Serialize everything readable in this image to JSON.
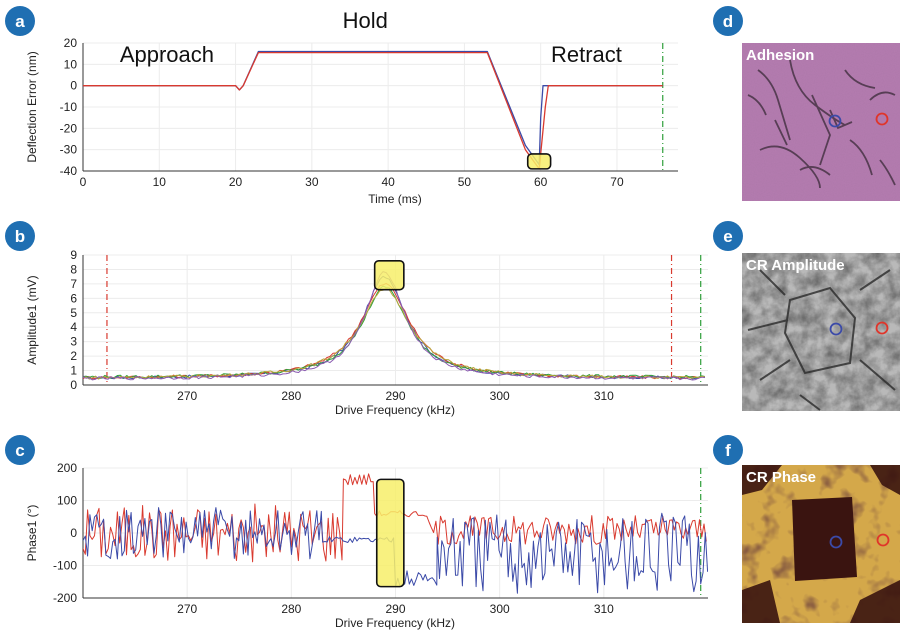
{
  "panel_labels": [
    "a",
    "b",
    "c",
    "d",
    "e",
    "f"
  ],
  "chart_data": [
    {
      "type": "line",
      "panel": "a",
      "xlabel": "Time (ms)",
      "ylabel": "Deflection Error (nm)",
      "xlim": [
        0,
        78
      ],
      "ylim": [
        -40,
        20
      ],
      "xticks": [
        0,
        10,
        20,
        30,
        40,
        50,
        60,
        70
      ],
      "yticks": [
        20,
        10,
        0,
        -10,
        -20,
        -30,
        -40
      ],
      "phase_labels": [
        {
          "text": "Approach",
          "x": 11,
          "y": 11
        },
        {
          "text": "Hold",
          "x": 37,
          "y": 27
        },
        {
          "text": "Retract",
          "x": 66,
          "y": 11
        }
      ],
      "series": [
        {
          "color": "#3b4aa8",
          "x": [
            0,
            20,
            20.5,
            21,
            23,
            53,
            58,
            59.8,
            60,
            60.3,
            62,
            76
          ],
          "y": [
            0,
            0,
            -2,
            0,
            16,
            16,
            -28,
            -37,
            -15,
            0,
            0,
            0
          ]
        },
        {
          "color": "#d93a2f",
          "x": [
            0,
            20,
            20.5,
            21,
            23,
            53,
            58,
            59.8,
            60.6,
            61,
            62,
            76
          ],
          "y": [
            0,
            0,
            -2,
            0,
            15.5,
            15.5,
            -30,
            -39,
            -10,
            0,
            0,
            0
          ]
        }
      ],
      "vlines": [
        {
          "x": 76,
          "color": "#2e9e3a"
        }
      ],
      "highlight": {
        "x": [
          58.3,
          61.3
        ],
        "y": [
          -39,
          -32
        ]
      }
    },
    {
      "type": "line",
      "panel": "b",
      "xlabel": "Drive Frequency (kHz)",
      "ylabel": "Amplitude1 (mV)",
      "xlim": [
        260,
        320
      ],
      "ylim": [
        0,
        9
      ],
      "xticks": [
        270,
        280,
        290,
        300,
        310
      ],
      "yticks": [
        9,
        8,
        7,
        6,
        5,
        4,
        3,
        2,
        1,
        0
      ],
      "peak_center": 289,
      "series": [
        {
          "color": "#3b4aa8",
          "peak": 7.5,
          "width": 2.6,
          "base": 0.45
        },
        {
          "color": "#d93a2f",
          "peak": 7.0,
          "width": 2.9,
          "base": 0.45
        },
        {
          "color": "#2e9e3a",
          "peak": 6.8,
          "width": 2.7,
          "base": 0.5
        },
        {
          "color": "#b8a53a",
          "peak": 6.6,
          "width": 3.0,
          "base": 0.45
        },
        {
          "color": "#8a5ab0",
          "peak": 7.8,
          "width": 2.4,
          "base": 0.4
        }
      ],
      "vlines": [
        {
          "x": 262.3,
          "color": "#d93a2f"
        },
        {
          "x": 316.5,
          "color": "#d93a2f"
        },
        {
          "x": 319.3,
          "color": "#2e9e3a"
        }
      ],
      "highlight": {
        "x": [
          288,
          290.8
        ],
        "y": [
          6.6,
          8.6
        ]
      }
    },
    {
      "type": "line",
      "panel": "c",
      "xlabel": "Drive Frequency (kHz)",
      "ylabel": "Phase1 (°)",
      "xlim": [
        260,
        320
      ],
      "ylim": [
        -200,
        200
      ],
      "xticks": [
        270,
        280,
        290,
        300,
        310
      ],
      "yticks": [
        200,
        100,
        0,
        -100,
        -200
      ],
      "series": [
        {
          "color": "#d93a2f",
          "segments": [
            [
              260,
              285,
              0,
              90
            ],
            [
              285,
              288,
              165,
              20
            ],
            [
              288,
              293,
              60,
              10
            ],
            [
              293,
              320,
              10,
              45
            ]
          ]
        },
        {
          "color": "#3b4aa8",
          "segments": [
            [
              260,
              283,
              0,
              80
            ],
            [
              283,
              290,
              -20,
              10
            ],
            [
              290,
              294,
              -140,
              25
            ],
            [
              294,
              320,
              -60,
              130
            ]
          ]
        }
      ],
      "vlines": [
        {
          "x": 319.3,
          "color": "#2e9e3a"
        }
      ],
      "highlight": {
        "x": [
          288.2,
          290.8
        ],
        "y": [
          -165,
          165
        ]
      }
    }
  ],
  "images": [
    {
      "panel": "d",
      "label": "Adhesion"
    },
    {
      "panel": "e",
      "label": "CR Amplitude"
    },
    {
      "panel": "f",
      "label": "CR Phase"
    }
  ]
}
